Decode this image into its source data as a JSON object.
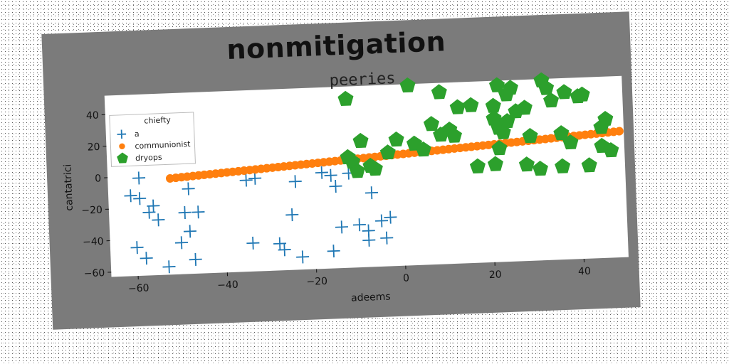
{
  "main_title": "nonmitigation",
  "chart_data": {
    "type": "scatter",
    "title": "peeries",
    "xlabel": "adeems",
    "ylabel": "cantatrici",
    "xlim": [
      -66,
      50
    ],
    "ylim": [
      -63,
      52
    ],
    "xticks": [
      -60,
      -40,
      -20,
      0,
      20,
      40
    ],
    "yticks": [
      -60,
      -40,
      -20,
      0,
      20,
      40
    ],
    "xtick_labels": [
      "−60",
      "−40",
      "−20",
      "0",
      "20",
      "40"
    ],
    "ytick_labels": [
      "−60",
      "−40",
      "−20",
      "0",
      "20",
      "40"
    ],
    "grid": false,
    "legend": {
      "title": "chiefty",
      "placement": "top-left"
    },
    "series": [
      {
        "name": "a",
        "marker": "plus",
        "color": "#1f77b4",
        "points": [
          [
            -59,
            -1
          ],
          [
            -61,
            -12
          ],
          [
            -59,
            -14
          ],
          [
            -56,
            -19
          ],
          [
            -57,
            -23
          ],
          [
            -55,
            -28
          ],
          [
            -60,
            -45
          ],
          [
            -58,
            -52
          ],
          [
            -53,
            -58
          ],
          [
            -48,
            -9
          ],
          [
            -49,
            -24
          ],
          [
            -46,
            -24
          ],
          [
            -48,
            -36
          ],
          [
            -50,
            -43
          ],
          [
            -47,
            -54
          ],
          [
            -35,
            -5
          ],
          [
            -33,
            -4
          ],
          [
            -34,
            -45
          ],
          [
            -28,
            -46
          ],
          [
            -27,
            -50
          ],
          [
            -24,
            -7
          ],
          [
            -25,
            -28
          ],
          [
            -23,
            -55
          ],
          [
            -18,
            -2
          ],
          [
            -16,
            -4
          ],
          [
            -15,
            -11
          ],
          [
            -14,
            -37
          ],
          [
            -16,
            -52
          ],
          [
            -12,
            -3
          ],
          [
            -10,
            -36
          ],
          [
            -8,
            -40
          ],
          [
            -7,
            -16
          ],
          [
            -8,
            -46
          ],
          [
            -5,
            -34
          ],
          [
            -3,
            -32
          ],
          [
            -4,
            -45
          ]
        ]
      },
      {
        "name": "communionist",
        "marker": "circle",
        "color": "#ff7f0e",
        "x_range": [
          -52,
          49
        ],
        "y_range": [
          -2,
          17
        ],
        "count": 80
      },
      {
        "name": "dryops",
        "marker": "pentagon",
        "color": "#2ca02c",
        "points": [
          [
            -12,
            44
          ],
          [
            2,
            51
          ],
          [
            9,
            46
          ],
          [
            13,
            36
          ],
          [
            -9,
            17
          ],
          [
            -12,
            7
          ],
          [
            -11,
            4
          ],
          [
            -10,
            -2
          ],
          [
            -6,
            -1
          ],
          [
            -7,
            1
          ],
          [
            -3,
            9
          ],
          [
            -1,
            17
          ],
          [
            3,
            14
          ],
          [
            5,
            10
          ],
          [
            7,
            26
          ],
          [
            9,
            19
          ],
          [
            11,
            22
          ],
          [
            12,
            18
          ],
          [
            16,
            37
          ],
          [
            21,
            36
          ],
          [
            22,
            49
          ],
          [
            24,
            43
          ],
          [
            25,
            47
          ],
          [
            21,
            28
          ],
          [
            22,
            22
          ],
          [
            24,
            26
          ],
          [
            23,
            19
          ],
          [
            26,
            32
          ],
          [
            28,
            34
          ],
          [
            22,
            9
          ],
          [
            29,
            16
          ],
          [
            32,
            51
          ],
          [
            33,
            46
          ],
          [
            34,
            38
          ],
          [
            37,
            43
          ],
          [
            40,
            40
          ],
          [
            41,
            41
          ],
          [
            36,
            17
          ],
          [
            38,
            11
          ],
          [
            45,
            20
          ],
          [
            46,
            25
          ],
          [
            45,
            8
          ],
          [
            47,
            5
          ],
          [
            17,
            -2
          ],
          [
            21,
            -1
          ],
          [
            28,
            -2
          ],
          [
            31,
            -5
          ],
          [
            36,
            -4
          ],
          [
            42,
            -4
          ]
        ]
      }
    ]
  }
}
